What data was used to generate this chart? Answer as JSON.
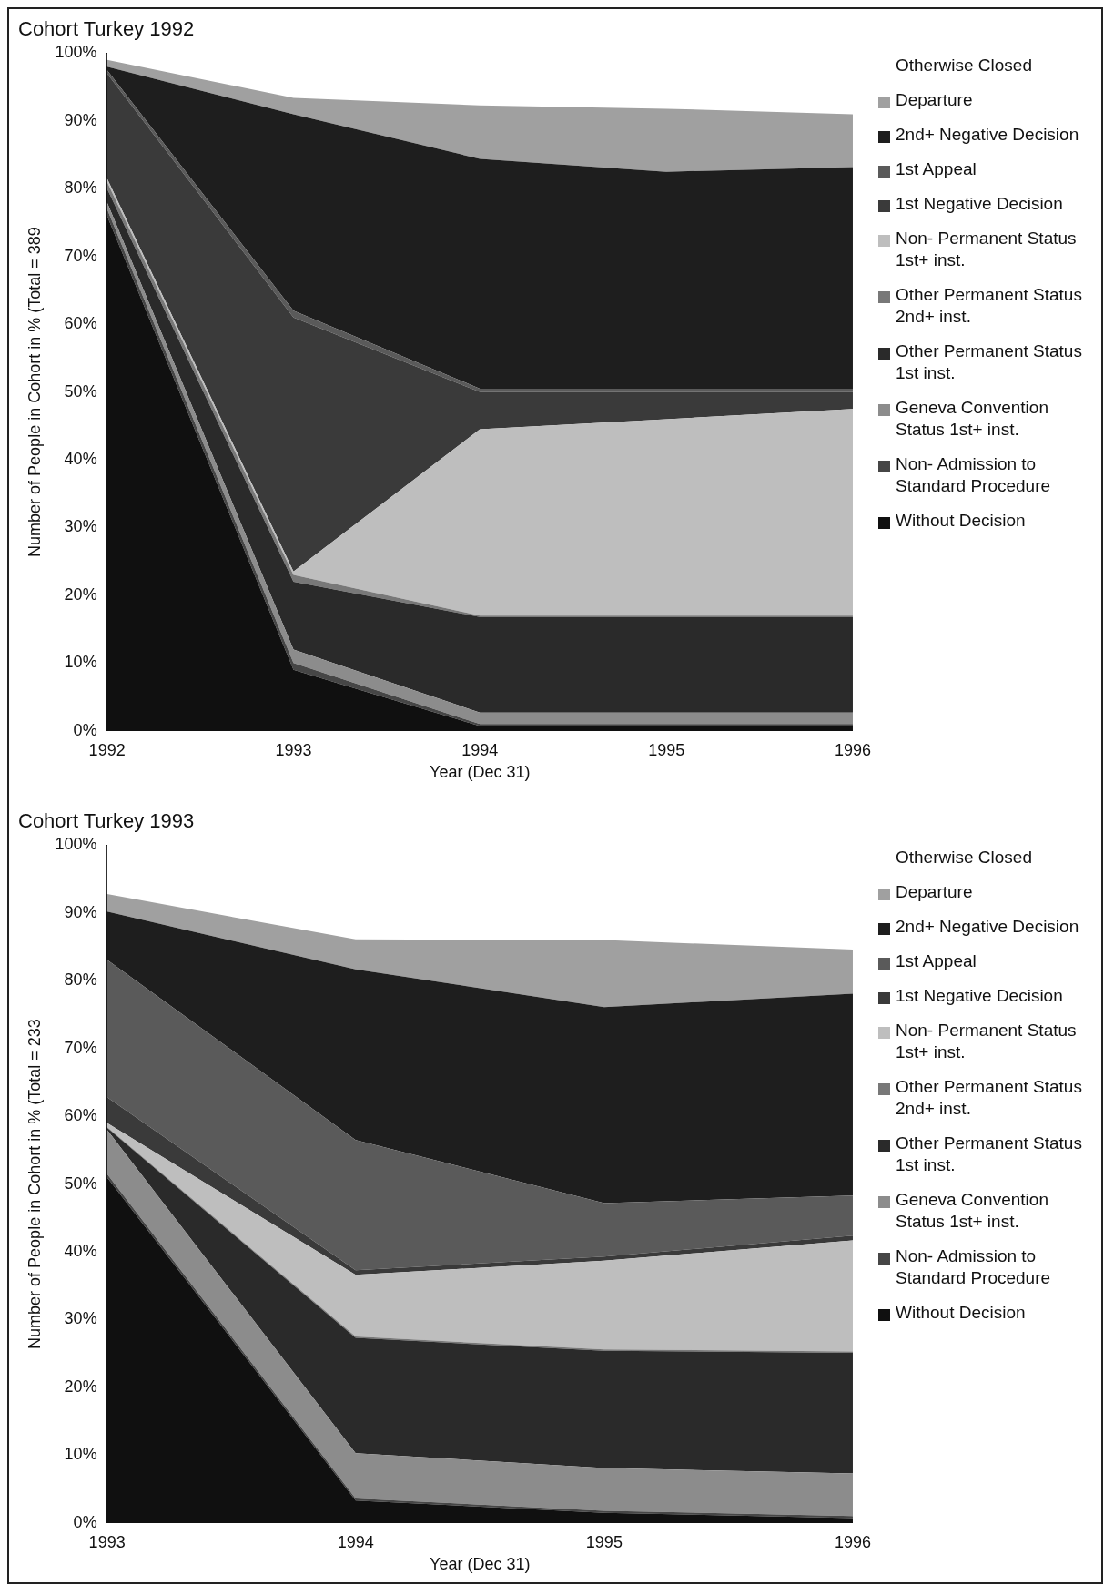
{
  "chart_data": [
    {
      "type": "area",
      "title": "Cohort Turkey 1992",
      "xlabel": "Year (Dec 31)",
      "ylabel": "Number of People in Cohort in % (Total = 389",
      "stacked": true,
      "legend": "right",
      "grid": false,
      "x": [
        1992,
        1993,
        1994,
        1995,
        1996
      ],
      "xlim": [
        1992,
        1996
      ],
      "xticks": [
        1992,
        1993,
        1994,
        1995,
        1996
      ],
      "ylim": [
        0,
        100
      ],
      "yticks": [
        {
          "value": 0,
          "label": "0%"
        },
        {
          "value": 10,
          "label": "10%"
        },
        {
          "value": 20,
          "label": "20%"
        },
        {
          "value": 30,
          "label": "30%"
        },
        {
          "value": 40,
          "label": "40%"
        },
        {
          "value": 50,
          "label": "50%"
        },
        {
          "value": 60,
          "label": "60%"
        },
        {
          "value": 70,
          "label": "70%"
        },
        {
          "value": 80,
          "label": "80%"
        },
        {
          "value": 90,
          "label": "90%"
        },
        {
          "value": 100,
          "label": "100%"
        }
      ],
      "series": [
        {
          "name": "Without Decision",
          "color": "#101010",
          "values": [
            76,
            9,
            0.7,
            0.7,
            0.7
          ]
        },
        {
          "name": "Non- Admission to Standard Procedure",
          "color": "#464646",
          "values": [
            1,
            1,
            0.3,
            0.3,
            0.3
          ]
        },
        {
          "name": "Geneva Convention Status 1st+ inst.",
          "color": "#8c8c8c",
          "values": [
            1,
            2,
            1.7,
            1.7,
            1.7
          ]
        },
        {
          "name": "Other Permanent Status 1st inst.",
          "color": "#2a2a2a",
          "values": [
            2,
            10,
            14.1,
            14.1,
            14.1
          ]
        },
        {
          "name": "Other Permanent Status 2nd+ inst.",
          "color": "#787878",
          "values": [
            1,
            1,
            0.2,
            0.2,
            0.2
          ]
        },
        {
          "name": "Non- Permanent Status 1st+ inst.",
          "color": "#bebebe",
          "values": [
            0.5,
            0.5,
            27.5,
            29,
            30.5
          ]
        },
        {
          "name": "1st Negative Decision",
          "color": "#3a3a3a",
          "values": [
            15.5,
            37.5,
            5.5,
            4,
            2.5
          ]
        },
        {
          "name": "1st Appeal",
          "color": "#5a5a5a",
          "values": [
            0.5,
            1,
            0.5,
            0.5,
            0.5
          ]
        },
        {
          "name": "2nd+ Negative Decision",
          "color": "#1e1e1e",
          "values": [
            0.5,
            29,
            33.9,
            32,
            32.7
          ]
        },
        {
          "name": "Departure",
          "color": "#a0a0a0",
          "values": [
            1,
            2.4,
            7.9,
            9.3,
            7.8
          ]
        },
        {
          "name": "Otherwise Closed",
          "color": "#ffffff",
          "values": [
            1,
            6.6,
            7.7,
            8.2,
            9
          ]
        }
      ]
    },
    {
      "type": "area",
      "title": "Cohort Turkey 1993",
      "xlabel": "Year (Dec 31)",
      "ylabel": "Number of People in Cohort in % (Total = 233",
      "stacked": true,
      "legend": "right",
      "grid": false,
      "x": [
        1993,
        1994,
        1995,
        1996
      ],
      "xlim": [
        1993,
        1996
      ],
      "xticks": [
        1993,
        1994,
        1995,
        1996
      ],
      "ylim": [
        0,
        100
      ],
      "yticks": [
        {
          "value": 0,
          "label": "0%"
        },
        {
          "value": 10,
          "label": "10%"
        },
        {
          "value": 20,
          "label": "20%"
        },
        {
          "value": 30,
          "label": "30%"
        },
        {
          "value": 40,
          "label": "40%"
        },
        {
          "value": 50,
          "label": "50%"
        },
        {
          "value": 60,
          "label": "60%"
        },
        {
          "value": 70,
          "label": "70%"
        },
        {
          "value": 80,
          "label": "80%"
        },
        {
          "value": 90,
          "label": "90%"
        },
        {
          "value": 100,
          "label": "100%"
        }
      ],
      "series": [
        {
          "name": "Without Decision",
          "color": "#101010",
          "values": [
            51,
            3.3,
            1.5,
            0.7
          ]
        },
        {
          "name": "Non- Admission to Standard Procedure",
          "color": "#464646",
          "values": [
            0.5,
            0.3,
            0.3,
            0.3
          ]
        },
        {
          "name": "Geneva Convention Status 1st+ inst.",
          "color": "#8c8c8c",
          "values": [
            6.5,
            6.7,
            6.3,
            6.3
          ]
        },
        {
          "name": "Other Permanent Status 1st inst.",
          "color": "#2a2a2a",
          "values": [
            0.3,
            17,
            17.3,
            17.8
          ]
        },
        {
          "name": "Other Permanent Status 2nd+ inst.",
          "color": "#787878",
          "values": [
            0.1,
            0.2,
            0.2,
            0.2
          ]
        },
        {
          "name": "Non- Permanent Status 1st+ inst.",
          "color": "#bebebe",
          "values": [
            0.6,
            9.1,
            13.1,
            16.4
          ]
        },
        {
          "name": "1st Negative Decision",
          "color": "#3a3a3a",
          "values": [
            3.8,
            0.7,
            0.6,
            0.7
          ]
        },
        {
          "name": "1st Appeal",
          "color": "#5a5a5a",
          "values": [
            20.3,
            19.2,
            7.9,
            5.9
          ]
        },
        {
          "name": "2nd+ Negative Decision",
          "color": "#1e1e1e",
          "values": [
            7.1,
            25.2,
            28.9,
            29.8
          ]
        },
        {
          "name": "Departure",
          "color": "#a0a0a0",
          "values": [
            2.6,
            4.4,
            9.9,
            6.5
          ]
        },
        {
          "name": "Otherwise Closed",
          "color": "#ffffff",
          "values": [
            7.2,
            13.9,
            14.3,
            15.7
          ]
        }
      ]
    }
  ]
}
